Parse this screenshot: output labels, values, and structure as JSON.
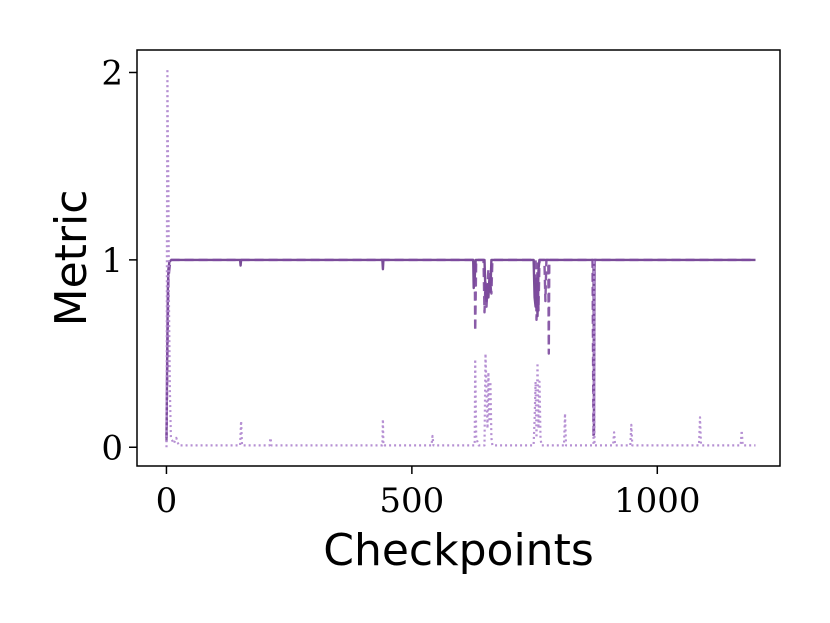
{
  "chart_data": {
    "type": "line",
    "title": "",
    "xlabel": "Checkpoints",
    "ylabel": "Metric",
    "xlim": [
      -60,
      1250
    ],
    "ylim": [
      -0.1,
      2.12
    ],
    "xticks": [
      0,
      500,
      1000
    ],
    "yticks": [
      0,
      1,
      2
    ],
    "xtick_labels": [
      "0",
      "500",
      "1000"
    ],
    "ytick_labels": [
      "0",
      "1",
      "2"
    ],
    "grid": false,
    "legend": "none",
    "colors": {
      "dark": "#6a3a8c",
      "mid": "#7d4a9e",
      "light": "#b28ad1"
    },
    "series": [
      {
        "style": "solid",
        "color_key": "dark",
        "points": [
          [
            0,
            0.05
          ],
          [
            1,
            0.3
          ],
          [
            2,
            0.6
          ],
          [
            3,
            0.85
          ],
          [
            4,
            0.95
          ],
          [
            6,
            0.99
          ],
          [
            10,
            1
          ],
          [
            150,
            1
          ],
          [
            151,
            0.97
          ],
          [
            152,
            1
          ],
          [
            440,
            1
          ],
          [
            441,
            0.95
          ],
          [
            442,
            1
          ],
          [
            625,
            1
          ],
          [
            626,
            0.85
          ],
          [
            628,
            0.9
          ],
          [
            630,
            1
          ],
          [
            648,
            1
          ],
          [
            650,
            0.82
          ],
          [
            652,
            0.78
          ],
          [
            654,
            0.87
          ],
          [
            656,
            0.8
          ],
          [
            658,
            0.9
          ],
          [
            660,
            0.83
          ],
          [
            662,
            1
          ],
          [
            748,
            1
          ],
          [
            750,
            0.8
          ],
          [
            752,
            0.75
          ],
          [
            754,
            0.9
          ],
          [
            756,
            0.7
          ],
          [
            758,
            0.95
          ],
          [
            760,
            1
          ],
          [
            870,
            1
          ],
          [
            871,
            0.07
          ],
          [
            872,
            1
          ],
          [
            1200,
            1
          ]
        ]
      },
      {
        "style": "dashed",
        "color_key": "mid",
        "points": [
          [
            0,
            0.03
          ],
          [
            2,
            0.5
          ],
          [
            4,
            0.9
          ],
          [
            8,
            1
          ],
          [
            628,
            1
          ],
          [
            629,
            0.62
          ],
          [
            631,
            1
          ],
          [
            646,
            1
          ],
          [
            648,
            0.72
          ],
          [
            650,
            0.88
          ],
          [
            652,
            0.75
          ],
          [
            656,
            0.95
          ],
          [
            662,
            0.82
          ],
          [
            664,
            1
          ],
          [
            752,
            1
          ],
          [
            754,
            0.68
          ],
          [
            756,
            0.98
          ],
          [
            758,
            0.73
          ],
          [
            760,
            1
          ],
          [
            770,
            1
          ],
          [
            772,
            0.78
          ],
          [
            774,
            1
          ],
          [
            778,
            1
          ],
          [
            779,
            0.5
          ],
          [
            780,
            1
          ],
          [
            868,
            1
          ],
          [
            870,
            0.05
          ],
          [
            872,
            1
          ],
          [
            1200,
            1
          ]
        ]
      },
      {
        "style": "dotted",
        "color_key": "light",
        "points": [
          [
            0,
            0.0
          ],
          [
            1,
            1.0
          ],
          [
            2,
            2.02
          ],
          [
            3,
            1.6
          ],
          [
            4,
            1.4
          ],
          [
            5,
            0.8
          ],
          [
            7,
            0.3
          ],
          [
            9,
            0.05
          ],
          [
            15,
            0.02
          ],
          [
            20,
            0.05
          ],
          [
            25,
            0.01
          ],
          [
            150,
            0.01
          ],
          [
            152,
            0.14
          ],
          [
            154,
            0.01
          ],
          [
            210,
            0.01
          ],
          [
            212,
            0.05
          ],
          [
            214,
            0.01
          ],
          [
            440,
            0.01
          ],
          [
            441,
            0.15
          ],
          [
            442,
            0.01
          ],
          [
            540,
            0.01
          ],
          [
            542,
            0.06
          ],
          [
            544,
            0.01
          ],
          [
            628,
            0.01
          ],
          [
            629,
            0.47
          ],
          [
            631,
            0.05
          ],
          [
            636,
            0.01
          ],
          [
            648,
            0.01
          ],
          [
            650,
            0.5
          ],
          [
            652,
            0.3
          ],
          [
            654,
            0.1
          ],
          [
            656,
            0.4
          ],
          [
            658,
            0.15
          ],
          [
            660,
            0.35
          ],
          [
            662,
            0.05
          ],
          [
            664,
            0.01
          ],
          [
            748,
            0.01
          ],
          [
            750,
            0.15
          ],
          [
            752,
            0.35
          ],
          [
            754,
            0.05
          ],
          [
            756,
            0.45
          ],
          [
            758,
            0.1
          ],
          [
            760,
            0.35
          ],
          [
            762,
            0.05
          ],
          [
            764,
            0.01
          ],
          [
            810,
            0.01
          ],
          [
            812,
            0.18
          ],
          [
            814,
            0.01
          ],
          [
            870,
            0.01
          ],
          [
            871,
            1.0
          ],
          [
            872,
            0.01
          ],
          [
            910,
            0.01
          ],
          [
            912,
            0.08
          ],
          [
            914,
            0.01
          ],
          [
            945,
            0.01
          ],
          [
            947,
            0.12
          ],
          [
            949,
            0.01
          ],
          [
            1085,
            0.01
          ],
          [
            1087,
            0.16
          ],
          [
            1089,
            0.01
          ],
          [
            1170,
            0.01
          ],
          [
            1172,
            0.09
          ],
          [
            1174,
            0.01
          ],
          [
            1200,
            0.01
          ]
        ]
      }
    ]
  }
}
